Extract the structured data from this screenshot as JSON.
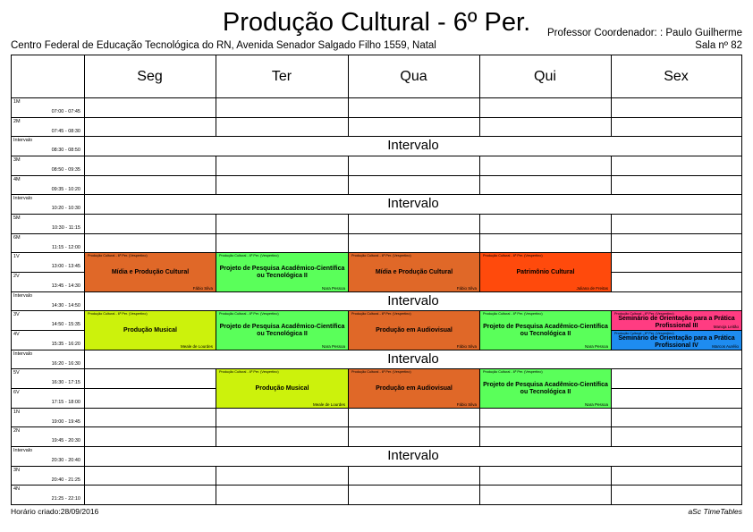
{
  "header": {
    "title": "Produção Cultural - 6º Per.",
    "coordinator": "Professor Coordenador: : Paulo Guilherme",
    "school": "Centro Federal de Educação Tecnológica do RN, Avenida Senador Salgado Filho 1559, Natal",
    "room": "Sala nº 82"
  },
  "days": [
    "Seg",
    "Ter",
    "Qua",
    "Qui",
    "Sex"
  ],
  "periods": [
    {
      "name": "1M",
      "time": "07:00 - 07:45"
    },
    {
      "name": "2M",
      "time": "07:45 - 08:30"
    },
    {
      "name": "Intervalo",
      "time": "08:30 - 08:50"
    },
    {
      "name": "3M",
      "time": "08:50 - 09:35"
    },
    {
      "name": "4M",
      "time": "09:35 - 10:20"
    },
    {
      "name": "Intervalo",
      "time": "10:20 - 10:30"
    },
    {
      "name": "5M",
      "time": "10:30 - 11:15"
    },
    {
      "name": "6M",
      "time": "11:15 - 12:00"
    },
    {
      "name": "1V",
      "time": "13:00 - 13:45"
    },
    {
      "name": "2V",
      "time": "13:45 - 14:30"
    },
    {
      "name": "Intervalo",
      "time": "14:30 - 14:50"
    },
    {
      "name": "3V",
      "time": "14:50 - 15:35"
    },
    {
      "name": "4V",
      "time": "15:35 - 16:20"
    },
    {
      "name": "Intervalo",
      "time": "16:20 - 16:30"
    },
    {
      "name": "5V",
      "time": "16:30 - 17:15"
    },
    {
      "name": "6V",
      "time": "17:15 - 18:00"
    },
    {
      "name": "1N",
      "time": "19:00 - 19:45"
    },
    {
      "name": "2N",
      "time": "19:45 - 20:30"
    },
    {
      "name": "Intervalo",
      "time": "20:30 - 20:40"
    },
    {
      "name": "3N",
      "time": "20:40 - 21:25"
    },
    {
      "name": "4N",
      "time": "21:25 - 22:10"
    }
  ],
  "break_label": "Intervalo",
  "lesson_header": "Produção Cultural - 6º Per. (Vespertino)",
  "lessons": [
    {
      "day": 0,
      "period": 8,
      "span": 2,
      "subject": "Mídia e Produção Cultural",
      "teacher": "Fábio Silva",
      "color": "#e06828"
    },
    {
      "day": 1,
      "period": 8,
      "span": 2,
      "subject": "Projeto de Pesquisa Acadêmico-Científica ou Tecnológica II",
      "teacher": "Nara Pessoa",
      "color": "#5aff5a"
    },
    {
      "day": 2,
      "period": 8,
      "span": 2,
      "subject": "Mídia e Produção Cultural",
      "teacher": "Fábio Silva",
      "color": "#e06828"
    },
    {
      "day": 3,
      "period": 8,
      "span": 2,
      "subject": "Patrimônio Cultural",
      "teacher": "Juliana de Freitas",
      "color": "#ff4a0c"
    },
    {
      "day": 0,
      "period": 11,
      "span": 2,
      "subject": "Produção Musical",
      "teacher": "Meale de Lourdes",
      "color": "#ccf20c"
    },
    {
      "day": 1,
      "period": 11,
      "span": 2,
      "subject": "Projeto de Pesquisa Acadêmico-Científica ou Tecnológica II",
      "teacher": "Nara Pessoa",
      "color": "#5aff5a"
    },
    {
      "day": 2,
      "period": 11,
      "span": 2,
      "subject": "Produção em Audiovisual",
      "teacher": "Fábio Silva",
      "color": "#e06828"
    },
    {
      "day": 3,
      "period": 11,
      "span": 2,
      "subject": "Projeto de Pesquisa Acadêmico-Científica ou Tecnológica II",
      "teacher": "Nara Pessoa",
      "color": "#5aff5a"
    },
    {
      "day": 4,
      "period": 11,
      "span": 1,
      "subject": "Seminário de Orientação para a Prática Profissional III",
      "teacher": "Manoja Leitão",
      "color": "#ff3c82"
    },
    {
      "day": 4,
      "period": 12,
      "span": 1,
      "subject": "Seminário de Orientação para a Prática Profissional IV",
      "teacher": "Marcos Aurélio",
      "color": "#1e8cf0"
    },
    {
      "day": 1,
      "period": 14,
      "span": 2,
      "subject": "Produção Musical",
      "teacher": "Meale de Lourdes",
      "color": "#ccf20c"
    },
    {
      "day": 2,
      "period": 14,
      "span": 2,
      "subject": "Produção em Audiovisual",
      "teacher": "Fábio Silva",
      "color": "#e06828"
    },
    {
      "day": 3,
      "period": 14,
      "span": 2,
      "subject": "Projeto de Pesquisa Acadêmico-Científica ou Tecnológica II",
      "teacher": "Nara Pessoa",
      "color": "#5aff5a"
    }
  ],
  "footer": {
    "created": "Horário criado:28/09/2016",
    "brand": "aSc TimeTables"
  }
}
